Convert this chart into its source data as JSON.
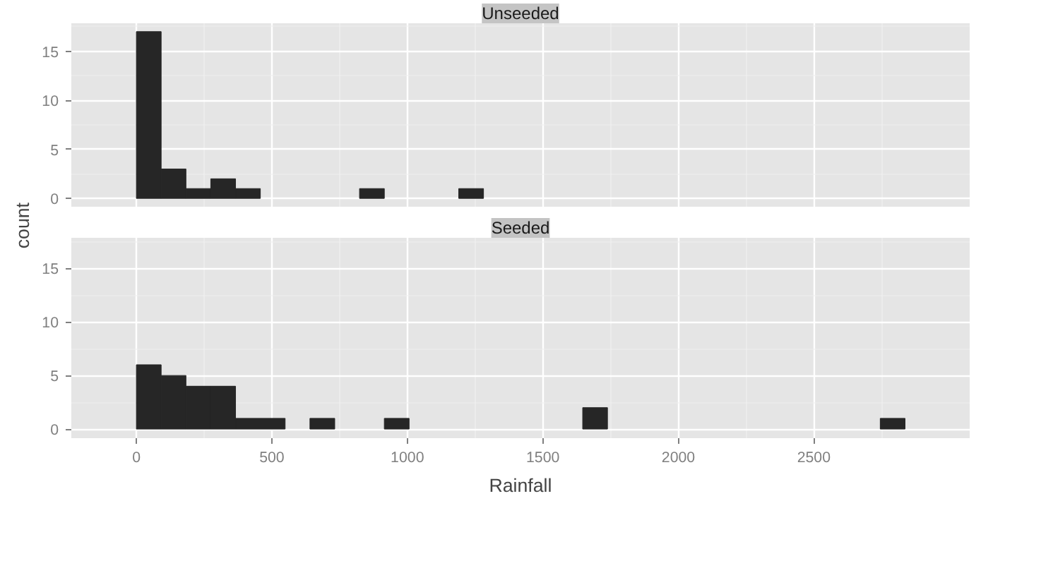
{
  "chart_data": [
    {
      "type": "histogram",
      "title": "Unseeded",
      "ylabel": "count",
      "color": "#262626",
      "bins": [
        0,
        91.5,
        183,
        274.5,
        366,
        457.5,
        549,
        640.5,
        732,
        823.5,
        915,
        1006.5,
        1098,
        1189.5,
        1281,
        1372.5,
        1464,
        1555.5,
        1647,
        1738.5,
        1830,
        1921.5,
        2013,
        2104.5,
        2196,
        2287.5,
        2379,
        2470.5,
        2562,
        2653.5,
        2745,
        2836.5
      ],
      "values": [
        17,
        3,
        1,
        2,
        1,
        0,
        0,
        0,
        0,
        1,
        0,
        0,
        0,
        1,
        0,
        0,
        0,
        0,
        0,
        0,
        0,
        0,
        0,
        0,
        0,
        0,
        0,
        0,
        0,
        0,
        0
      ],
      "xlim": [
        -240,
        3075
      ],
      "ylim": [
        -0.85,
        17.85
      ],
      "xticks": [
        0,
        500,
        1000,
        1500,
        2000,
        2500
      ],
      "yticks": [
        0,
        5,
        10,
        15
      ],
      "grid": true,
      "tick_labels": "y"
    },
    {
      "type": "histogram",
      "title": "Seeded",
      "xlabel": "Rainfall",
      "color": "#262626",
      "bins": [
        0,
        91.5,
        183,
        274.5,
        366,
        457.5,
        549,
        640.5,
        732,
        823.5,
        915,
        1006.5,
        1098,
        1189.5,
        1281,
        1372.5,
        1464,
        1555.5,
        1647,
        1738.5,
        1830,
        1921.5,
        2013,
        2104.5,
        2196,
        2287.5,
        2379,
        2470.5,
        2562,
        2653.5,
        2745,
        2836.5
      ],
      "values": [
        6,
        5,
        4,
        4,
        1,
        1,
        0,
        1,
        0,
        0,
        1,
        0,
        0,
        0,
        0,
        0,
        0,
        0,
        2,
        0,
        0,
        0,
        0,
        0,
        0,
        0,
        0,
        0,
        0,
        0,
        1
      ],
      "xlim": [
        -240,
        3075
      ],
      "ylim": [
        -0.85,
        17.85
      ],
      "xticks": [
        0,
        500,
        1000,
        1500,
        2000,
        2500
      ],
      "yticks": [
        0,
        5,
        10,
        15
      ],
      "grid": true
    }
  ]
}
